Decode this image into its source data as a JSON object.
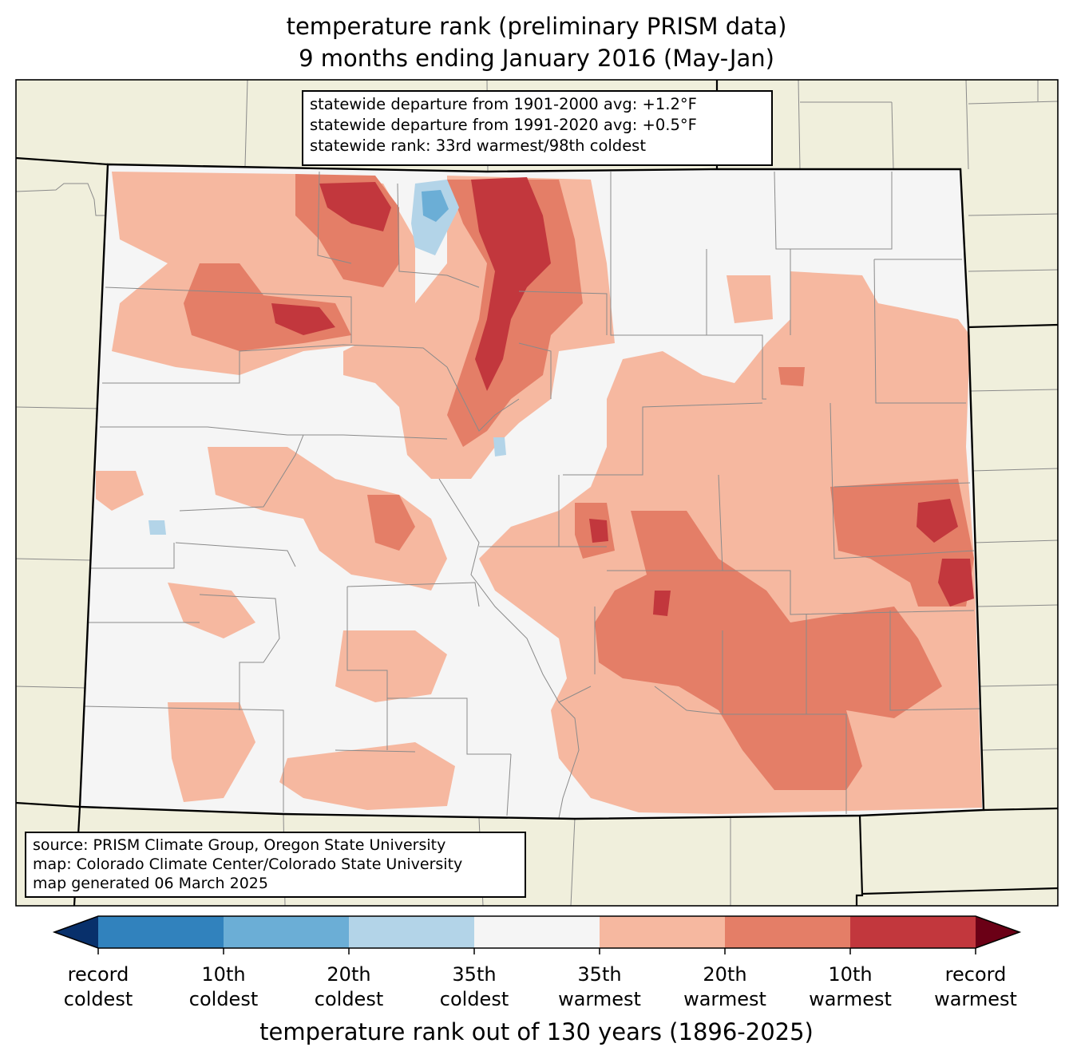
{
  "title_line1": "temperature rank (preliminary PRISM data)",
  "title_line2": "9 months ending January 2016 (May-Jan)",
  "stats": [
    "statewide departure from 1901-2000 avg: +1.2°F",
    "statewide departure from 1991-2020 avg: +0.5°F",
    "statewide rank: 33rd warmest/98th coldest"
  ],
  "credits": [
    "source: PRISM Climate Group, Oregon State University",
    "map: Colorado Climate Center/Colorado State University",
    "map generated 06 March 2025"
  ],
  "colorbar": {
    "title": "temperature rank out of 130 years (1896-2025)",
    "ticks": [
      {
        "line1": "record",
        "line2": "coldest"
      },
      {
        "line1": "10th",
        "line2": "coldest"
      },
      {
        "line1": "20th",
        "line2": "coldest"
      },
      {
        "line1": "35th",
        "line2": "coldest"
      },
      {
        "line1": "35th",
        "line2": "warmest"
      },
      {
        "line1": "20th",
        "line2": "warmest"
      },
      {
        "line1": "10th",
        "line2": "warmest"
      },
      {
        "line1": "record",
        "line2": "warmest"
      }
    ],
    "colors": {
      "below_record_coldest": "#08306b",
      "record_to_10th_coldest": "#3182bd",
      "10th_to_20th_coldest": "#6baed6",
      "20th_to_35th_coldest": "#b3d4e8",
      "near_normal": "#f5f5f5",
      "35th_to_20th_warmest": "#f6b8a0",
      "20th_to_10th_warmest": "#e47e67",
      "10th_to_record_warmest": "#c2373d",
      "beyond_record_warmest": "#6b0016"
    }
  },
  "map_colors": {
    "background_land": "#f0efdc",
    "county_lines": "#8a8a8a",
    "state_lines": "#000000"
  }
}
